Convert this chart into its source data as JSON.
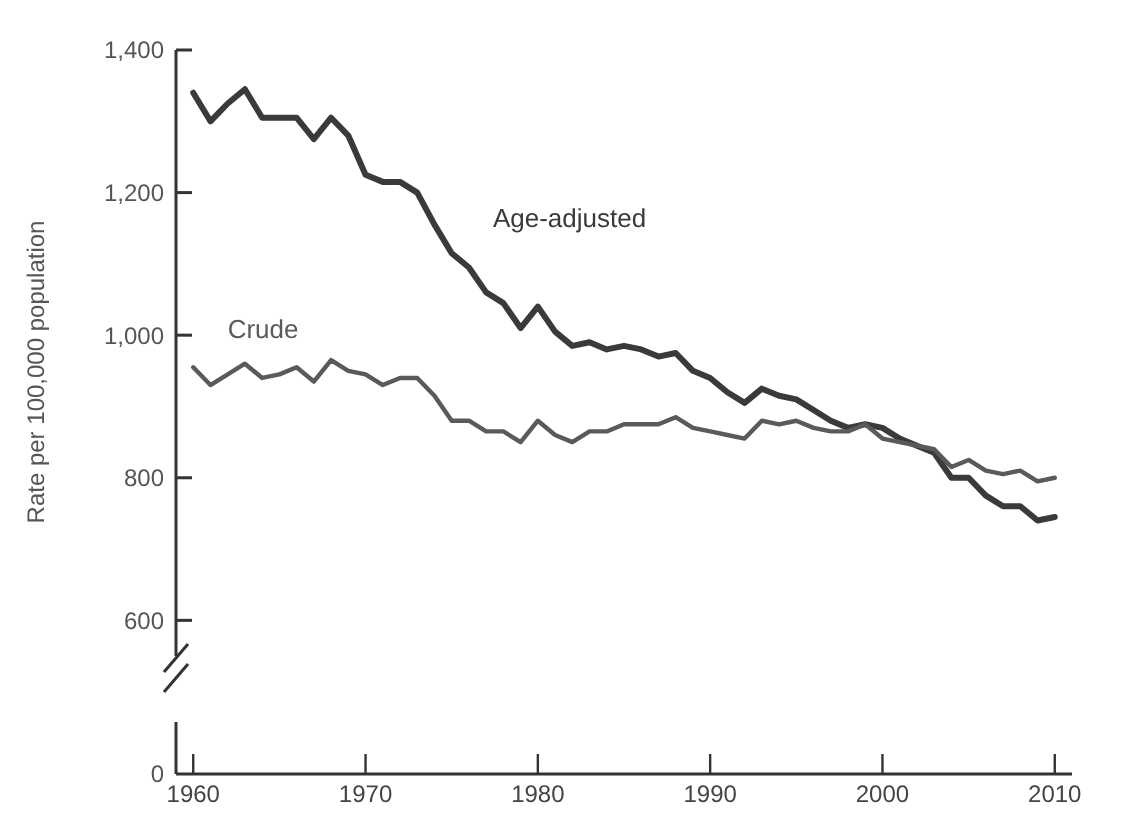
{
  "chart_data": {
    "type": "line",
    "ylabel": "Rate per 100,000 population",
    "x": [
      1960,
      1961,
      1962,
      1963,
      1964,
      1965,
      1966,
      1967,
      1968,
      1969,
      1970,
      1971,
      1972,
      1973,
      1974,
      1975,
      1976,
      1977,
      1978,
      1979,
      1980,
      1981,
      1982,
      1983,
      1984,
      1985,
      1986,
      1987,
      1988,
      1989,
      1990,
      1991,
      1992,
      1993,
      1994,
      1995,
      1996,
      1997,
      1998,
      1999,
      2000,
      2001,
      2002,
      2003,
      2004,
      2005,
      2006,
      2007,
      2008,
      2009,
      2010
    ],
    "series": [
      {
        "name": "Age-adjusted",
        "color": "#3a3a3a",
        "values": [
          1340,
          1300,
          1325,
          1345,
          1305,
          1305,
          1305,
          1275,
          1305,
          1280,
          1225,
          1215,
          1215,
          1200,
          1155,
          1115,
          1095,
          1060,
          1045,
          1010,
          1040,
          1005,
          985,
          990,
          980,
          985,
          980,
          970,
          975,
          950,
          940,
          920,
          905,
          925,
          915,
          910,
          895,
          880,
          870,
          875,
          870,
          855,
          845,
          835,
          800,
          800,
          775,
          760,
          760,
          740,
          745
        ]
      },
      {
        "name": "Crude",
        "color": "#5a5a5a",
        "values": [
          955,
          930,
          945,
          960,
          940,
          945,
          955,
          935,
          965,
          950,
          945,
          930,
          940,
          940,
          915,
          880,
          880,
          865,
          865,
          850,
          880,
          860,
          850,
          865,
          865,
          875,
          875,
          875,
          885,
          870,
          865,
          860,
          855,
          880,
          875,
          880,
          870,
          865,
          865,
          875,
          855,
          850,
          845,
          840,
          815,
          825,
          810,
          805,
          810,
          795,
          800
        ]
      }
    ],
    "xlim": [
      1959,
      2011
    ],
    "xticks": [
      1960,
      1970,
      1980,
      1990,
      2000,
      2010
    ],
    "ylim": [
      550,
      1400
    ],
    "yticks": [
      600,
      800,
      {
        "value": 1000,
        "label": "1,000"
      },
      {
        "value": 1200,
        "label": "1,200"
      },
      {
        "value": 1400,
        "label": "1,400"
      }
    ],
    "annotations": [
      "0"
    ],
    "grid": false,
    "legend": false
  }
}
